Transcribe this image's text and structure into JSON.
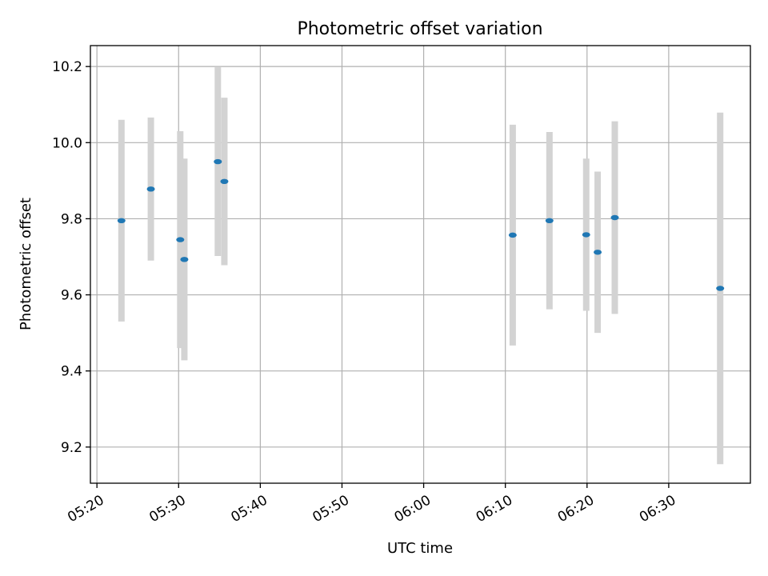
{
  "chart_data": {
    "type": "scatter",
    "title": "Photometric offset variation",
    "xlabel": "UTC time",
    "ylabel": "Photometric offset",
    "xlim_minutes": [
      319.2,
      400.0
    ],
    "ylim": [
      9.105,
      10.255
    ],
    "x_ticks": [
      {
        "minutes": 320,
        "label": "05:20"
      },
      {
        "minutes": 330,
        "label": "05:30"
      },
      {
        "minutes": 340,
        "label": "05:40"
      },
      {
        "minutes": 350,
        "label": "05:50"
      },
      {
        "minutes": 360,
        "label": "06:00"
      },
      {
        "minutes": 370,
        "label": "06:10"
      },
      {
        "minutes": 380,
        "label": "06:20"
      },
      {
        "minutes": 390,
        "label": "06:30"
      }
    ],
    "y_ticks": [
      {
        "value": 9.2,
        "label": "9.2"
      },
      {
        "value": 9.4,
        "label": "9.4"
      },
      {
        "value": 9.6,
        "label": "9.6"
      },
      {
        "value": 9.8,
        "label": "9.8"
      },
      {
        "value": 10.0,
        "label": "10.0"
      },
      {
        "value": 10.2,
        "label": "10.2"
      }
    ],
    "grid": true,
    "point_color": "#1f77b4",
    "errorbar_color": "#d3d3d3",
    "points": [
      {
        "x": "05:23:00",
        "x_minutes": 323.0,
        "y": 9.795,
        "yerr": 0.265
      },
      {
        "x": "05:26:36",
        "x_minutes": 326.6,
        "y": 9.878,
        "yerr": 0.188
      },
      {
        "x": "05:30:12",
        "x_minutes": 330.2,
        "y": 9.745,
        "yerr": 0.285
      },
      {
        "x": "05:30:42",
        "x_minutes": 330.7,
        "y": 9.693,
        "yerr": 0.265
      },
      {
        "x": "05:34:48",
        "x_minutes": 334.8,
        "y": 9.95,
        "yerr": 0.248
      },
      {
        "x": "05:35:36",
        "x_minutes": 335.6,
        "y": 9.898,
        "yerr": 0.22
      },
      {
        "x": "06:10:54",
        "x_minutes": 370.9,
        "y": 9.757,
        "yerr": 0.29
      },
      {
        "x": "06:15:24",
        "x_minutes": 375.4,
        "y": 9.795,
        "yerr": 0.233
      },
      {
        "x": "06:19:54",
        "x_minutes": 379.9,
        "y": 9.758,
        "yerr": 0.2
      },
      {
        "x": "06:21:18",
        "x_minutes": 381.3,
        "y": 9.712,
        "yerr": 0.212
      },
      {
        "x": "06:23:24",
        "x_minutes": 383.4,
        "y": 9.803,
        "yerr": 0.253
      },
      {
        "x": "06:36:18",
        "x_minutes": 396.3,
        "y": 9.617,
        "yerr": 0.462
      }
    ]
  }
}
